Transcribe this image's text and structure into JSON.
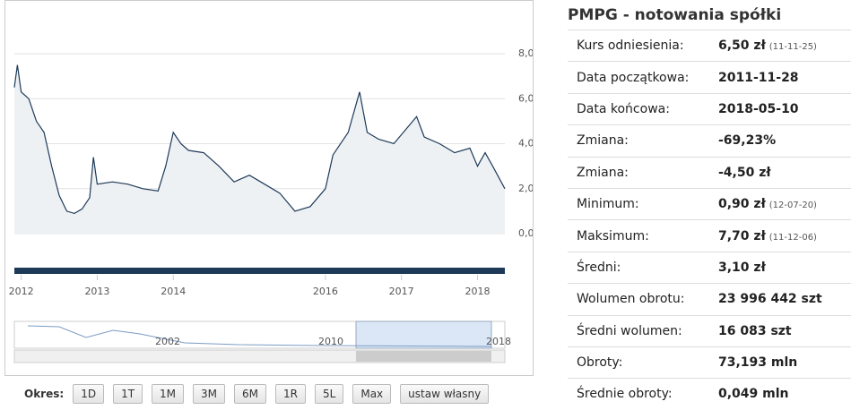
{
  "header": {
    "title": "PMPG - notowania spółki"
  },
  "chart": {
    "type": "line",
    "color": "#1e3a58",
    "fill": "#eef1f4",
    "x": [
      2011.91,
      2011.95,
      2012.0,
      2012.1,
      2012.2,
      2012.3,
      2012.4,
      2012.5,
      2012.6,
      2012.7,
      2012.8,
      2012.9,
      2012.95,
      2013.0,
      2013.2,
      2013.4,
      2013.6,
      2013.8,
      2013.9,
      2014.0,
      2014.1,
      2014.2,
      2014.4,
      2014.6,
      2014.8,
      2015.0,
      2015.2,
      2015.4,
      2015.6,
      2015.8,
      2016.0,
      2016.1,
      2016.3,
      2016.45,
      2016.55,
      2016.7,
      2016.9,
      2017.1,
      2017.2,
      2017.3,
      2017.5,
      2017.7,
      2017.9,
      2018.0,
      2018.1,
      2018.2,
      2018.36
    ],
    "values": [
      6.5,
      7.5,
      6.3,
      6.0,
      5.0,
      4.5,
      3.0,
      1.7,
      1.0,
      0.9,
      1.1,
      1.6,
      3.4,
      2.2,
      2.3,
      2.2,
      2.0,
      1.9,
      3.0,
      4.5,
      4.0,
      3.7,
      3.6,
      3.0,
      2.3,
      2.6,
      2.2,
      1.8,
      1.0,
      1.2,
      2.0,
      3.5,
      4.5,
      6.3,
      4.5,
      4.2,
      4.0,
      4.8,
      5.2,
      4.3,
      4.0,
      3.6,
      3.8,
      3.0,
      3.6,
      3.0,
      2.0
    ],
    "xlim": [
      2011.91,
      2018.36
    ],
    "xticks": [
      2012,
      2013,
      2014,
      2016,
      2017,
      2018
    ],
    "ylim": [
      0,
      8
    ],
    "yticks": [
      {
        "value": 0,
        "label": "0,00"
      },
      {
        "value": 2,
        "label": "2,00"
      },
      {
        "value": 4,
        "label": "4,00"
      },
      {
        "value": 6,
        "label": "6,00"
      },
      {
        "value": 8,
        "label": "8,00"
      }
    ],
    "grid": true,
    "navigator_labels": [
      "2002",
      "2010",
      "2018"
    ]
  },
  "table": {
    "rows": [
      {
        "label": "Kurs odniesienia:",
        "value": "6,50 zł",
        "note": "(11-11-25)"
      },
      {
        "label": "Data początkowa:",
        "value": "2011-11-28"
      },
      {
        "label": "Data końcowa:",
        "value": "2018-05-10"
      },
      {
        "label": "Zmiana:",
        "value": "-69,23%"
      },
      {
        "label": "Zmiana:",
        "value": "-4,50 zł"
      },
      {
        "label": "Minimum:",
        "value": "0,90 zł",
        "note": "(12-07-20)"
      },
      {
        "label": "Maksimum:",
        "value": "7,70 zł",
        "note": "(11-12-06)"
      },
      {
        "label": "Średni:",
        "value": "3,10 zł"
      },
      {
        "label": "Wolumen obrotu:",
        "value": "23 996 442 szt"
      },
      {
        "label": "Średni wolumen:",
        "value": "16 083 szt"
      },
      {
        "label": "Obroty:",
        "value": "73,193 mln"
      },
      {
        "label": "Średnie obroty:",
        "value": "0,049 mln"
      }
    ]
  },
  "periods": {
    "label": "Okres:",
    "buttons": [
      "1D",
      "1T",
      "1M",
      "3M",
      "6M",
      "1R",
      "5L",
      "Max",
      "ustaw własny"
    ]
  }
}
